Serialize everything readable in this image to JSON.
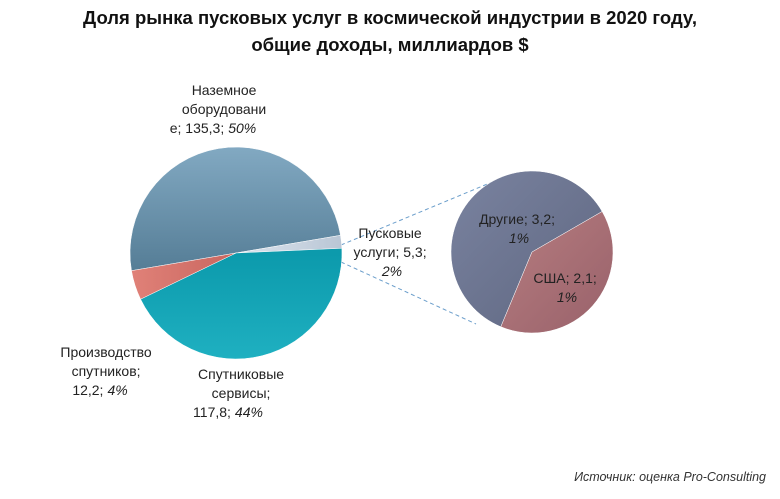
{
  "title_line1": "Доля рынка пусковых услуг в космической индустрии в 2020 году,",
  "title_line2": "общие доходы, миллиардов $",
  "source": "Источник: оценка Pro-Consulting",
  "chart_data": {
    "type": "pie",
    "subtype": "pie-of-pie",
    "slices": [
      {
        "key": "ground",
        "label_lines": [
          "Наземное",
          "оборудовани",
          "е; 135,3;"
        ],
        "pct_text": "50%",
        "value": 135.3,
        "color": "#6b93ad"
      },
      {
        "key": "launch",
        "label_lines": [
          "Пусковые",
          "услуги; 5,3;",
          ""
        ],
        "pct_text": "2%",
        "value": 5.3,
        "color": "#c8d3e0"
      },
      {
        "key": "services",
        "label_lines": [
          "Спутниковые",
          "сервисы;",
          "117,8;"
        ],
        "pct_text": "44%",
        "value": 117.8,
        "color": "#14a0b2"
      },
      {
        "key": "manufacturing",
        "label_lines": [
          "Производство",
          "спутников;",
          "12,2;"
        ],
        "pct_text": "4%",
        "value": 12.2,
        "color": "#d9756e"
      }
    ],
    "secondary": {
      "of": "launch",
      "slices": [
        {
          "key": "other",
          "label_lines": [
            "Другие; 3,2;",
            ""
          ],
          "pct_text": "1%",
          "value": 3.2,
          "color": "#6e7790"
        },
        {
          "key": "usa",
          "label_lines": [
            "США; 2,1;",
            ""
          ],
          "pct_text": "1%",
          "value": 2.1,
          "color": "#a86e72"
        }
      ]
    }
  }
}
